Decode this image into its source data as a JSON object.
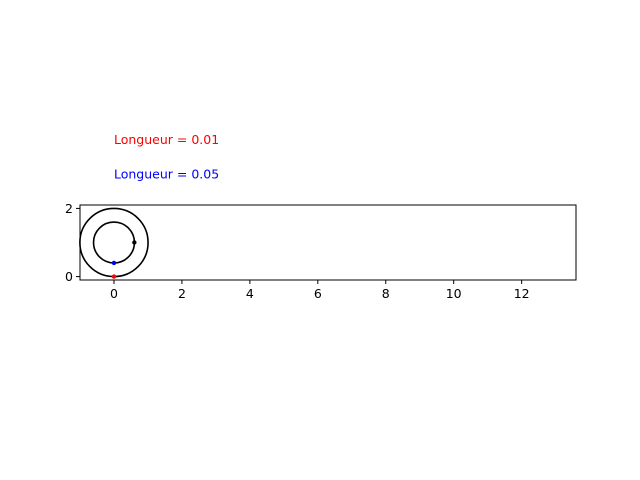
{
  "chart_data": {
    "type": "line",
    "title": "",
    "xlabel": "",
    "ylabel": "",
    "xlim": [
      -1.0,
      13.6
    ],
    "ylim": [
      -0.1,
      2.1
    ],
    "xticks": [
      0,
      2,
      4,
      6,
      8,
      10,
      12
    ],
    "yticks": [
      0,
      2
    ],
    "grid": false,
    "annotations": [
      {
        "text": "Longueur = 0.01",
        "color": "#ff0000",
        "x": 0,
        "y": 4.0
      },
      {
        "text": "Longueur = 0.05",
        "color": "#0000ff",
        "x": 0,
        "y": 3.0
      }
    ],
    "series": [
      {
        "shape": "circle",
        "center": [
          0,
          1
        ],
        "radius": 1.0,
        "color": "#000000"
      },
      {
        "shape": "circle",
        "center": [
          0,
          1
        ],
        "radius": 0.6,
        "color": "#000000"
      },
      {
        "shape": "point",
        "x": 0,
        "y": 0,
        "color": "#ff0000"
      },
      {
        "shape": "point",
        "x": 0,
        "y": 0.4,
        "color": "#0000ff"
      },
      {
        "shape": "point",
        "x": 0.6,
        "y": 1.0,
        "color": "#000000"
      }
    ]
  }
}
